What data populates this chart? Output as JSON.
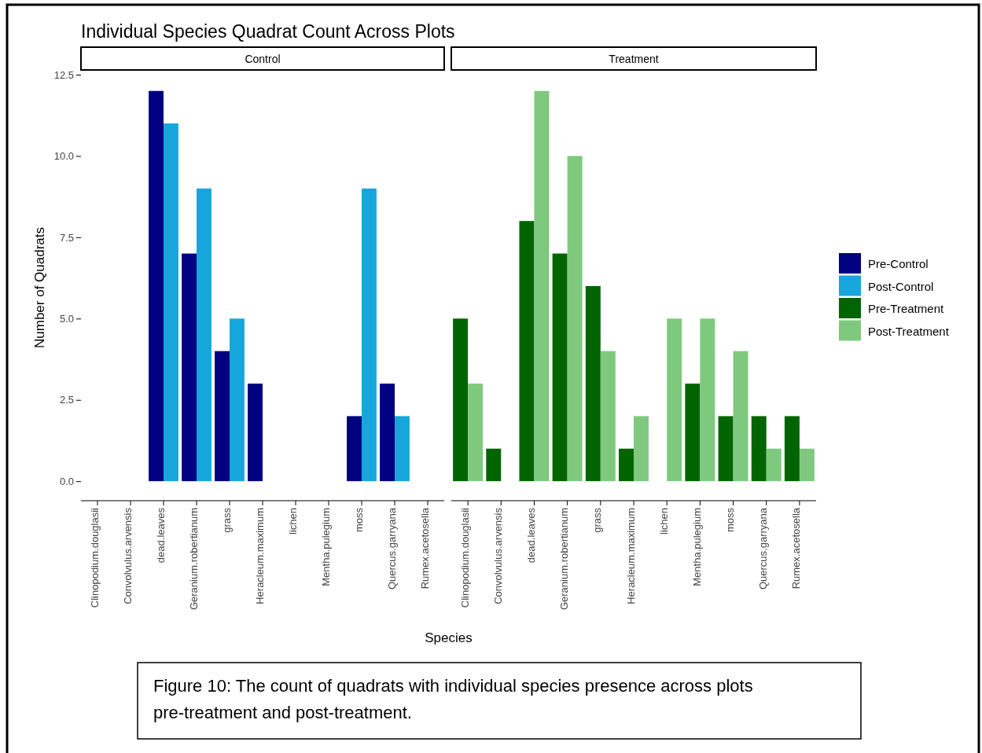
{
  "chart_data": [
    {
      "type": "bar",
      "title": "Individual Species Quadrat Count Across Plots",
      "subtitle": "Control",
      "xlabel": "Species",
      "ylabel": "Number of Quadrats",
      "categories": [
        "Clinopodium.douglasii",
        "Convolvulus.arvensis",
        "dead.leaves",
        "Geranium.robertianum",
        "grass",
        "Heracleum.maximum",
        "lichen",
        "Mentha.pulegium",
        "moss",
        "Quercus.garryana",
        "Rumex.acetosella"
      ],
      "series": [
        {
          "name": "Pre-Control",
          "color": "#000080",
          "values": [
            null,
            null,
            12,
            7,
            4,
            3,
            null,
            null,
            2,
            3,
            null
          ]
        },
        {
          "name": "Post-Control",
          "color": "#17a6dc",
          "values": [
            null,
            null,
            11,
            9,
            5,
            null,
            null,
            null,
            9,
            2,
            null
          ]
        }
      ],
      "ylim": [
        -0.6,
        12.5
      ],
      "yticks": [
        {
          "value": 0,
          "label": "0.0"
        },
        {
          "value": 2.5,
          "label": "2.5"
        },
        {
          "value": 5,
          "label": "5.0"
        },
        {
          "value": 7.5,
          "label": "7.5"
        },
        {
          "value": 10,
          "label": "10.0"
        },
        {
          "value": 12.5,
          "label": "12.5"
        }
      ],
      "legend": "right",
      "annotations": [
        "Figure 10: The count of quadrats with individual species presence across plots pre-treatment and post-treatment."
      ]
    },
    {
      "type": "bar",
      "subtitle": "Treatment",
      "categories": [
        "Clinopodium.douglasii",
        "Convolvulus.arvensis",
        "dead.leaves",
        "Geranium.robertianum",
        "grass",
        "Heracleum.maximum",
        "lichen",
        "Mentha.pulegium",
        "moss",
        "Quercus.garryana",
        "Rumex.acetosella"
      ],
      "series": [
        {
          "name": "Pre-Treatment",
          "color": "#006400",
          "values": [
            5,
            1,
            8,
            7,
            6,
            1,
            null,
            3,
            2,
            2,
            2
          ]
        },
        {
          "name": "Post-Treatment",
          "color": "#7fc97f",
          "values": [
            3,
            null,
            12,
            10,
            4,
            2,
            5,
            5,
            4,
            1,
            1
          ]
        }
      ],
      "ylim": [
        -0.6,
        12.5
      ],
      "tick_labels": "x",
      "legend": "right"
    }
  ]
}
